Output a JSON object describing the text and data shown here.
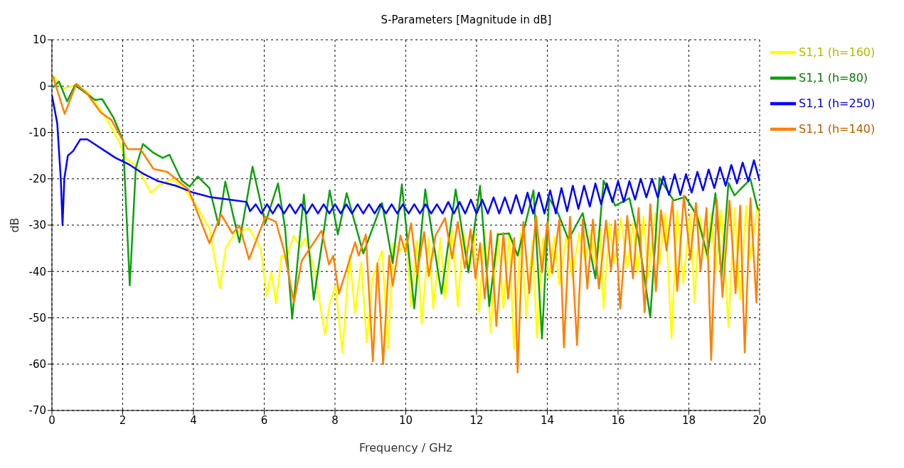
{
  "chart_data": {
    "type": "line",
    "title": "S-Parameters [Magnitude in dB]",
    "xlabel": "Frequency / GHz",
    "ylabel": "dB",
    "xlim": [
      0,
      20
    ],
    "xticks": [
      0,
      2,
      4,
      6,
      8,
      10,
      12,
      14,
      16,
      18,
      20
    ],
    "ylim": [
      -70,
      10
    ],
    "yticks": [
      -70,
      -60,
      -50,
      -40,
      -30,
      -20,
      -10,
      0,
      10
    ],
    "grid": true,
    "legend": "top right",
    "marker": "none",
    "line_style": "solid",
    "series": [
      {
        "name": "S1,1 (h=160)",
        "color": "#ffff00",
        "x": [
          0.03,
          0.3,
          0.65,
          1.02,
          1.48,
          1.88,
          2.08,
          2.41,
          2.8,
          3.0,
          3.4,
          3.72,
          4.12,
          4.45,
          4.75,
          4.91,
          5.18,
          5.57,
          5.9,
          6.07,
          6.2,
          6.33,
          6.49,
          6.63,
          6.83,
          7.02,
          7.16,
          7.42,
          7.72,
          7.85,
          8.01,
          8.21,
          8.41,
          8.57,
          8.74,
          8.9,
          9.06,
          9.33,
          9.5,
          9.65,
          9.85,
          10.02,
          10.15,
          10.32,
          10.45,
          10.65,
          10.78,
          10.98,
          11.11,
          11.31,
          11.47,
          11.63,
          11.8,
          11.93,
          12.07,
          12.23,
          12.4,
          12.6,
          12.76,
          12.92,
          13.06,
          13.25,
          13.41,
          13.58,
          13.71,
          13.88,
          14.05,
          14.2,
          14.34,
          14.54,
          14.7,
          14.9,
          15.07,
          15.23,
          15.33,
          15.49,
          15.59,
          15.76,
          15.89,
          16.08,
          16.26,
          16.42,
          16.55,
          16.72,
          16.85,
          17.05,
          17.17,
          17.34,
          17.51,
          17.67,
          17.84,
          18.04,
          18.16,
          18.3,
          18.5,
          18.63,
          18.75,
          18.92,
          19.12,
          19.29,
          19.45,
          19.62,
          19.74,
          19.94,
          20
        ],
        "values": [
          2.4,
          -0.6,
          0.2,
          -1.4,
          -6.3,
          -11.7,
          -15.5,
          -17.4,
          -23.1,
          -21.5,
          -20.1,
          -22,
          -26.3,
          -30.7,
          -43.7,
          -35,
          -31.7,
          -30.7,
          -35,
          -45.3,
          -40.2,
          -46.9,
          -36.6,
          -37.2,
          -32.3,
          -34.7,
          -32.8,
          -39.8,
          -53.7,
          -46.9,
          -43.1,
          -57.5,
          -36.6,
          -49.1,
          -38,
          -55.3,
          -41.5,
          -35.5,
          -56.7,
          -33.9,
          -35.5,
          -33.4,
          -47.5,
          -33.4,
          -51.3,
          -32.8,
          -48,
          -32.8,
          -45.9,
          -31.2,
          -47.5,
          -31.7,
          -39.3,
          -31.2,
          -48.8,
          -31.2,
          -53.2,
          -31.7,
          -48,
          -31.7,
          -56.7,
          -31.7,
          -49.6,
          -33.4,
          -54.3,
          -32.8,
          -41.5,
          -32.5,
          -42.9,
          -32.3,
          -41.3,
          -31.7,
          -37.7,
          -31.2,
          -38.2,
          -30.7,
          -48,
          -29.6,
          -38.2,
          -28.5,
          -39.3,
          -29.6,
          -40.4,
          -28.2,
          -41.3,
          -27.4,
          -38.5,
          -27.4,
          -54.5,
          -26.8,
          -42.6,
          -27.4,
          -46.7,
          -28,
          -37.2,
          -27.4,
          -40.4,
          -26.8,
          -52,
          -26.3,
          -46.1,
          -25.8,
          -37.2,
          -25.8,
          -27
        ]
      },
      {
        "name": "S1,1 (h=80)",
        "color": "#10a010",
        "x": [
          0.03,
          0.2,
          0.43,
          0.65,
          0.89,
          1.22,
          1.42,
          1.74,
          2.01,
          2.2,
          2.37,
          2.57,
          2.87,
          3.13,
          3.32,
          3.66,
          3.89,
          4.12,
          4.45,
          4.71,
          4.9,
          5.3,
          5.67,
          6.03,
          6.39,
          6.59,
          6.79,
          7.12,
          7.4,
          7.85,
          8.08,
          8.33,
          8.8,
          9.33,
          9.63,
          9.89,
          10.24,
          10.55,
          11.01,
          11.41,
          11.77,
          12.1,
          12.36,
          12.6,
          12.92,
          13.16,
          13.61,
          13.85,
          14.05,
          14.3,
          14.6,
          15.0,
          15.36,
          15.59,
          15.92,
          16.32,
          16.58,
          16.91,
          17.17,
          17.57,
          17.9,
          18.23,
          18.53,
          18.75,
          18.92,
          19.12,
          19.29,
          19.45,
          19.74,
          19.94,
          20
        ],
        "values": [
          -0.3,
          1,
          -3.3,
          0.2,
          -1.1,
          -3,
          -2.8,
          -6.8,
          -11.7,
          -43,
          -17.7,
          -12.5,
          -14.4,
          -15.5,
          -14.8,
          -20.3,
          -21.7,
          -19.5,
          -22,
          -30,
          -20.6,
          -33.7,
          -17.4,
          -29.6,
          -21,
          -30.7,
          -50.2,
          -23.4,
          -46.1,
          -22.5,
          -32,
          -23.1,
          -36.1,
          -25.2,
          -38.2,
          -21.2,
          -48,
          -22.3,
          -44.8,
          -22.3,
          -40.2,
          -21.5,
          -47.5,
          -32,
          -31.8,
          -36.6,
          -22.5,
          -54.5,
          -24.2,
          -27.4,
          -33.1,
          -27.4,
          -41.5,
          -20.4,
          -25.8,
          -24.2,
          -32.8,
          -49.9,
          -19.8,
          -24.7,
          -23.9,
          -28,
          -36.6,
          -23.1,
          -41.3,
          -20.9,
          -23.6,
          -22.3,
          -20.1,
          -26.3,
          -27
        ]
      },
      {
        "name": "S1,1 (h=250)",
        "color": "#0000ff",
        "x": [
          0,
          0.15,
          0.25,
          0.3,
          0.35,
          0.45,
          0.6,
          0.8,
          1.0,
          1.2,
          1.5,
          1.8,
          2.2,
          2.6,
          3.0,
          3.5,
          4.0,
          4.5,
          5.0,
          5.5,
          5.6,
          5.76,
          5.92,
          6.08,
          6.24,
          6.4,
          6.56,
          6.72,
          6.88,
          7.04,
          7.2,
          7.36,
          7.52,
          7.68,
          7.84,
          8.0,
          8.16,
          8.32,
          8.48,
          8.64,
          8.8,
          8.96,
          9.12,
          9.28,
          9.44,
          9.6,
          9.76,
          9.92,
          10.08,
          10.24,
          10.4,
          10.56,
          10.72,
          10.88,
          11.04,
          11.2,
          11.36,
          11.52,
          11.68,
          11.84,
          12.0,
          12.16,
          12.32,
          12.48,
          12.64,
          12.8,
          12.96,
          13.12,
          13.28,
          13.44,
          13.6,
          13.76,
          13.92,
          14.08,
          14.24,
          14.4,
          14.56,
          14.72,
          14.88,
          15.04,
          15.2,
          15.36,
          15.52,
          15.68,
          15.84,
          16.0,
          16.16,
          16.32,
          16.48,
          16.64,
          16.8,
          16.96,
          17.12,
          17.28,
          17.44,
          17.6,
          17.76,
          17.92,
          18.08,
          18.24,
          18.4,
          18.56,
          18.72,
          18.88,
          19.04,
          19.2,
          19.36,
          19.52,
          19.68,
          19.84,
          20.0
        ],
        "values": [
          -2,
          -8,
          -20,
          -30,
          -20,
          -15,
          -14,
          -11.5,
          -11.5,
          -12.5,
          -14,
          -15.5,
          -17,
          -19,
          -20.5,
          -21.5,
          -23,
          -24,
          -24.5,
          -25,
          -27,
          -25.5,
          -27.5,
          -25.5,
          -27.5,
          -25.5,
          -27.5,
          -25.5,
          -27.5,
          -25.5,
          -27.5,
          -25.5,
          -27.5,
          -25.5,
          -27.5,
          -25.5,
          -27.5,
          -25.5,
          -27.5,
          -25.5,
          -27.5,
          -25.5,
          -27.5,
          -25.5,
          -27.5,
          -25.5,
          -27.5,
          -25.5,
          -27.5,
          -25.5,
          -27.5,
          -25.5,
          -27.5,
          -25.5,
          -27.5,
          -25,
          -27.5,
          -25,
          -27.5,
          -24.5,
          -27.5,
          -24.5,
          -27.5,
          -24,
          -27.5,
          -24,
          -27.5,
          -23.5,
          -27.5,
          -23,
          -27.5,
          -23,
          -27.5,
          -22.5,
          -27.5,
          -22,
          -27,
          -21.5,
          -26.5,
          -21.5,
          -26,
          -21,
          -25.5,
          -21,
          -25,
          -20.5,
          -25,
          -20.5,
          -24.5,
          -20,
          -24,
          -20,
          -24,
          -19.5,
          -23.5,
          -19,
          -23.5,
          -19,
          -23,
          -18.5,
          -22.5,
          -18,
          -22,
          -17.5,
          -21.5,
          -17,
          -21,
          -16.5,
          -20.5,
          -16,
          -20.5
        ]
      },
      {
        "name": "S1,1 (h=140)",
        "color": "#ff8000",
        "x": [
          0.03,
          0.36,
          0.69,
          0.99,
          1.38,
          1.68,
          2.14,
          2.5,
          2.87,
          3.26,
          3.86,
          4.45,
          4.78,
          5.1,
          5.3,
          5.57,
          6.03,
          6.33,
          6.56,
          6.84,
          7.06,
          7.62,
          7.83,
          7.95,
          8.11,
          8.57,
          8.67,
          8.87,
          9.07,
          9.2,
          9.36,
          9.53,
          9.63,
          9.85,
          9.99,
          10.15,
          10.32,
          10.52,
          10.65,
          10.84,
          11.11,
          11.31,
          11.47,
          11.67,
          11.83,
          11.97,
          12.1,
          12.23,
          12.4,
          12.56,
          12.76,
          12.89,
          13.06,
          13.16,
          13.32,
          13.49,
          13.68,
          13.85,
          14.0,
          14.14,
          14.34,
          14.47,
          14.64,
          14.84,
          15.0,
          15.13,
          15.29,
          15.46,
          15.66,
          15.8,
          15.92,
          16.06,
          16.26,
          16.42,
          16.58,
          16.75,
          16.91,
          17.07,
          17.21,
          17.37,
          17.54,
          17.67,
          17.86,
          18.04,
          18.2,
          18.33,
          18.5,
          18.63,
          18.79,
          18.95,
          19.15,
          19.32,
          19.45,
          19.58,
          19.74,
          19.91,
          20
        ],
        "values": [
          2.1,
          -6,
          0.5,
          -1.6,
          -5.7,
          -7.3,
          -13.6,
          -13.6,
          -17.9,
          -18.5,
          -22.3,
          -33.9,
          -27.7,
          -31.8,
          -30.1,
          -37.4,
          -28.2,
          -29.3,
          -35.5,
          -46.7,
          -37.7,
          -31.2,
          -38.5,
          -36.6,
          -44.8,
          -33.7,
          -36.6,
          -32,
          -59.4,
          -38.2,
          -60,
          -36.6,
          -43.1,
          -32.3,
          -35.8,
          -29.6,
          -40.4,
          -31.5,
          -41,
          -32.3,
          -28.5,
          -37.2,
          -29.3,
          -39.3,
          -30.9,
          -41.5,
          -33.9,
          -45.9,
          -31.2,
          -51.8,
          -31.7,
          -45.9,
          -32.8,
          -61.8,
          -29.3,
          -44.7,
          -28,
          -40.2,
          -29.3,
          -40.4,
          -28.8,
          -56.4,
          -28.2,
          -55.9,
          -28.8,
          -43.7,
          -28.8,
          -43.7,
          -29,
          -39.8,
          -29,
          -48,
          -28,
          -41.5,
          -26.3,
          -48.8,
          -25.5,
          -44.2,
          -26.8,
          -35.5,
          -24.7,
          -44.2,
          -23.6,
          -37.4,
          -25.2,
          -39.8,
          -26.3,
          -59.1,
          -24.4,
          -45.5,
          -24.7,
          -44.7,
          -25.8,
          -57.5,
          -24.2,
          -46.7,
          -26.3
        ]
      }
    ]
  }
}
